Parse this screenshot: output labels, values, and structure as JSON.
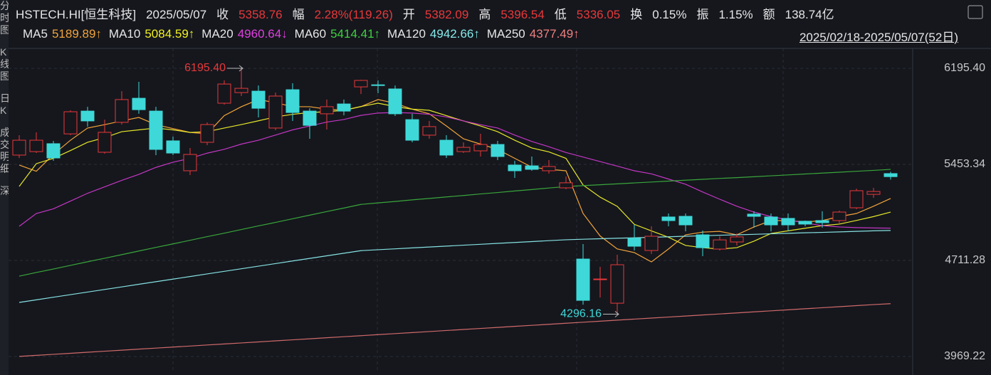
{
  "header": {
    "symbol": "HSTECH.HI[恒生科技]",
    "date": "2025/05/07",
    "items": [
      {
        "label": "收",
        "value": "5358.76"
      },
      {
        "label": "幅",
        "value": "2.28%(119.26)"
      },
      {
        "label": "开",
        "value": "5382.09"
      },
      {
        "label": "高",
        "value": "5396.54"
      },
      {
        "label": "低",
        "value": "5336.05"
      },
      {
        "label": "换",
        "value": "0.15%"
      },
      {
        "label": "振",
        "value": "1.15%"
      },
      {
        "label": "额",
        "value": "138.74亿"
      }
    ],
    "range": "2025/02/18-2025/05/07(52日)"
  },
  "sidebar": [
    "分时图",
    "K线图",
    "日K",
    "成交明细",
    "深"
  ],
  "chart_data": {
    "type": "candlestick",
    "ylim": [
      3892.2,
      6283.4
    ],
    "yticks": [
      {
        "value": 6195.4,
        "label": "6195.40"
      },
      {
        "value": 5453.34,
        "label": "5453.34"
      },
      {
        "value": 4711.28,
        "label": "4711.28"
      },
      {
        "value": 3969.22,
        "label": "3969.22"
      }
    ],
    "grid": true,
    "up_color": "#e8383a",
    "down_color": "#3ed8d8",
    "open": [
      5525,
      5552,
      5613,
      5689,
      5865,
      5547,
      5778,
      5964,
      5865,
      5635,
      5404,
      5624,
      5926,
      6008,
      6019,
      5734,
      6030,
      5865,
      5844,
      5920,
      6052,
      6068,
      6036,
      5799,
      5679,
      5640,
      5552,
      5558,
      5607,
      5448,
      5442,
      5404,
      5272,
      4722,
      4563,
      4381,
      4882,
      4788,
      5047,
      5052,
      4909,
      4799,
      4854,
      5069,
      5047,
      5036,
      5014,
      5019,
      5019,
      5118,
      5222,
      5382.09
    ],
    "close": [
      5640,
      5640,
      5503,
      5860,
      5789,
      5701,
      5954,
      5876,
      5569,
      5541,
      5530,
      5761,
      6074,
      6041,
      5887,
      5981,
      5854,
      5755,
      5899,
      5865,
      6102,
      6063,
      5844,
      5640,
      5745,
      5525,
      5585,
      5607,
      5514,
      5404,
      5415,
      5437,
      5311,
      4403,
      4568,
      4678,
      4821,
      4898,
      5019,
      4986,
      4810,
      4870,
      4893,
      5052,
      4986,
      4986,
      4992,
      5003,
      5085,
      5250,
      5244,
      5358.76
    ],
    "high": [
      5679,
      5701,
      5635,
      5871,
      5898,
      5799,
      6019,
      6091,
      5898,
      5668,
      5580,
      5778,
      6102,
      6195.4,
      6063,
      6008,
      6080,
      5887,
      5954,
      5954,
      6107,
      6102,
      6063,
      5844,
      5789,
      5679,
      5624,
      5690,
      5635,
      5481,
      5514,
      5486,
      5360,
      4838,
      4662,
      4755,
      4986,
      4975,
      5074,
      5074,
      4942,
      4898,
      4920,
      5091,
      5074,
      5074,
      5019,
      5091,
      5096,
      5266,
      5272,
      5396.54
    ],
    "low": [
      5503,
      5541,
      5481,
      5679,
      5745,
      5536,
      5761,
      5844,
      5525,
      5525,
      5371,
      5602,
      5915,
      5981,
      5816,
      5717,
      5789,
      5651,
      5723,
      5832,
      5997,
      6003,
      5827,
      5624,
      5651,
      5503,
      5541,
      5514,
      5486,
      5349,
      5404,
      5382,
      5261,
      4370,
      4425,
      4296.16,
      4788,
      4761,
      4975,
      4936,
      4744,
      4788,
      4827,
      4964,
      4936,
      4936,
      4975,
      4964,
      4992,
      5107,
      5195,
      5336.05
    ],
    "annotations": [
      {
        "value": 6195.4,
        "label": "6195.40"
      },
      {
        "value": 4296.16,
        "label": "4296.16"
      }
    ],
    "series": [
      {
        "name": "MA5",
        "legend_value": "5189.89↑",
        "color": "#f2a33a",
        "label_color": "#f2a33a",
        "values": [
          5448,
          5400,
          5530,
          5640,
          5734,
          5760,
          5789,
          5816,
          5760,
          5730,
          5700,
          5690,
          5830,
          5899,
          5954,
          5930,
          5899,
          5899,
          5880,
          5871,
          5900,
          5954,
          5926,
          5880,
          5844,
          5750,
          5651,
          5610,
          5569,
          5500,
          5432,
          5415,
          5404,
          5074,
          4900,
          4800,
          4772,
          4700,
          4800,
          4909,
          4930,
          4936,
          4909,
          4970,
          5019,
          5019,
          5008,
          5019,
          5050,
          5074,
          5130,
          5189.89
        ]
      },
      {
        "name": "MA10",
        "legend_value": "5084.59↑",
        "color": "#e6e62a",
        "label_color": "#f0f020",
        "values": [
          5283,
          5459,
          5500,
          5560,
          5624,
          5660,
          5706,
          5720,
          5734,
          5720,
          5700,
          5706,
          5734,
          5761,
          5790,
          5820,
          5840,
          5854,
          5860,
          5871,
          5900,
          5926,
          5900,
          5880,
          5871,
          5830,
          5789,
          5750,
          5706,
          5640,
          5580,
          5550,
          5500,
          5294,
          5200,
          5129,
          4990,
          4940,
          4890,
          4827,
          4810,
          4799,
          4810,
          4860,
          4920,
          4940,
          4960,
          4980,
          4992,
          5020,
          5050,
          5084.59
        ]
      },
      {
        "name": "MA20",
        "legend_value": "4960.64↓",
        "color": "#c436c4",
        "label_color": "#e040e0",
        "values": [
          4975,
          5074,
          5110,
          5170,
          5230,
          5280,
          5330,
          5376,
          5430,
          5470,
          5500,
          5540,
          5570,
          5610,
          5640,
          5680,
          5720,
          5750,
          5780,
          5800,
          5832,
          5850,
          5854,
          5850,
          5840,
          5820,
          5789,
          5760,
          5734,
          5680,
          5630,
          5590,
          5545,
          5510,
          5475,
          5440,
          5404,
          5380,
          5340,
          5300,
          5240,
          5184,
          5130,
          5085,
          5050,
          5025,
          5000,
          4980,
          4970,
          4965,
          4962,
          4960.64
        ]
      },
      {
        "name": "MA60",
        "legend_value": "5414.41↑",
        "color": "#3aa63a",
        "label_color": "#40d040",
        "values": [
          4590,
          4618,
          4645,
          4673,
          4701,
          4728,
          4756,
          4784,
          4812,
          4839,
          4867,
          4895,
          4922,
          4950,
          4978,
          5005,
          5033,
          5061,
          5089,
          5116,
          5144,
          5156,
          5167,
          5179,
          5190,
          5202,
          5213,
          5225,
          5236,
          5248,
          5259,
          5271,
          5282,
          5289,
          5296,
          5303,
          5310,
          5317,
          5324,
          5331,
          5338,
          5345,
          5351,
          5358,
          5365,
          5372,
          5379,
          5386,
          5393,
          5400,
          5407,
          5414.41
        ]
      },
      {
        "name": "MA120",
        "legend_value": "4942.66↑",
        "color": "#86e2e2",
        "label_color": "#86eaea",
        "values": [
          4387,
          4407,
          4427,
          4447,
          4467,
          4487,
          4507,
          4527,
          4547,
          4567,
          4587,
          4607,
          4627,
          4647,
          4667,
          4687,
          4707,
          4727,
          4747,
          4767,
          4787,
          4794,
          4801,
          4808,
          4815,
          4822,
          4829,
          4836,
          4843,
          4850,
          4857,
          4864,
          4871,
          4875,
          4879,
          4883,
          4886,
          4890,
          4894,
          4898,
          4902,
          4906,
          4909,
          4913,
          4917,
          4921,
          4925,
          4928,
          4932,
          4936,
          4940,
          4942.66
        ]
      },
      {
        "name": "MA250",
        "legend_value": "4377.49↑",
        "color": "#d06a6a",
        "label_color": "#f08080",
        "values": [
          3970,
          3978,
          3986,
          3994,
          4002,
          4010,
          4018,
          4026,
          4034,
          4042,
          4050,
          4058,
          4066,
          4074,
          4082,
          4090,
          4098,
          4106,
          4114,
          4122,
          4130,
          4138,
          4146,
          4154,
          4162,
          4170,
          4178,
          4186,
          4194,
          4202,
          4210,
          4218,
          4226,
          4234,
          4242,
          4250,
          4258,
          4266,
          4274,
          4282,
          4290,
          4298,
          4306,
          4314,
          4322,
          4330,
          4338,
          4346,
          4354,
          4362,
          4370,
          4377.49
        ]
      }
    ]
  }
}
